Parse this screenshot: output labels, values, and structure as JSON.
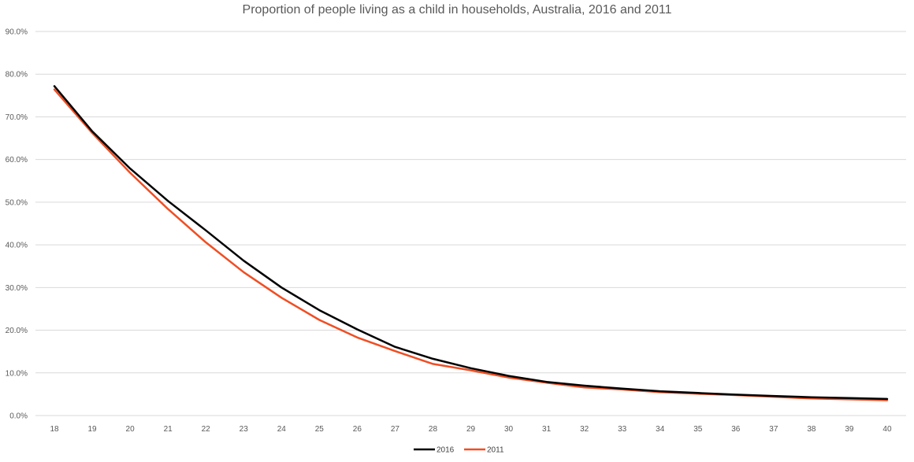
{
  "chart_data": {
    "type": "line",
    "title": "Proportion of people living as a child in households, Australia, 2016 and 2011",
    "xlabel": "",
    "ylabel": "",
    "x": [
      18,
      19,
      20,
      21,
      22,
      23,
      24,
      25,
      26,
      27,
      28,
      29,
      30,
      31,
      32,
      33,
      34,
      35,
      36,
      37,
      38,
      39,
      40
    ],
    "ylim": [
      0,
      90
    ],
    "yticks": [
      "0.0%",
      "10.0%",
      "20.0%",
      "30.0%",
      "40.0%",
      "50.0%",
      "60.0%",
      "70.0%",
      "80.0%",
      "90.0%"
    ],
    "grid": true,
    "legend_position": "bottom",
    "series": [
      {
        "name": "2016",
        "color": "#000000",
        "values": [
          77.2,
          66.6,
          57.9,
          50.3,
          43.4,
          36.3,
          30.0,
          24.7,
          20.2,
          16.1,
          13.3,
          11.1,
          9.3,
          7.9,
          7.0,
          6.3,
          5.7,
          5.3,
          4.9,
          4.6,
          4.3,
          4.1,
          3.9
        ]
      },
      {
        "name": "2011",
        "color": "#f04e23",
        "values": [
          76.4,
          66.2,
          56.9,
          48.4,
          40.6,
          33.6,
          27.6,
          22.4,
          18.3,
          15.1,
          12.1,
          10.6,
          8.9,
          7.7,
          6.6,
          6.1,
          5.5,
          5.1,
          4.8,
          4.4,
          4.0,
          3.8,
          3.6
        ]
      }
    ]
  }
}
